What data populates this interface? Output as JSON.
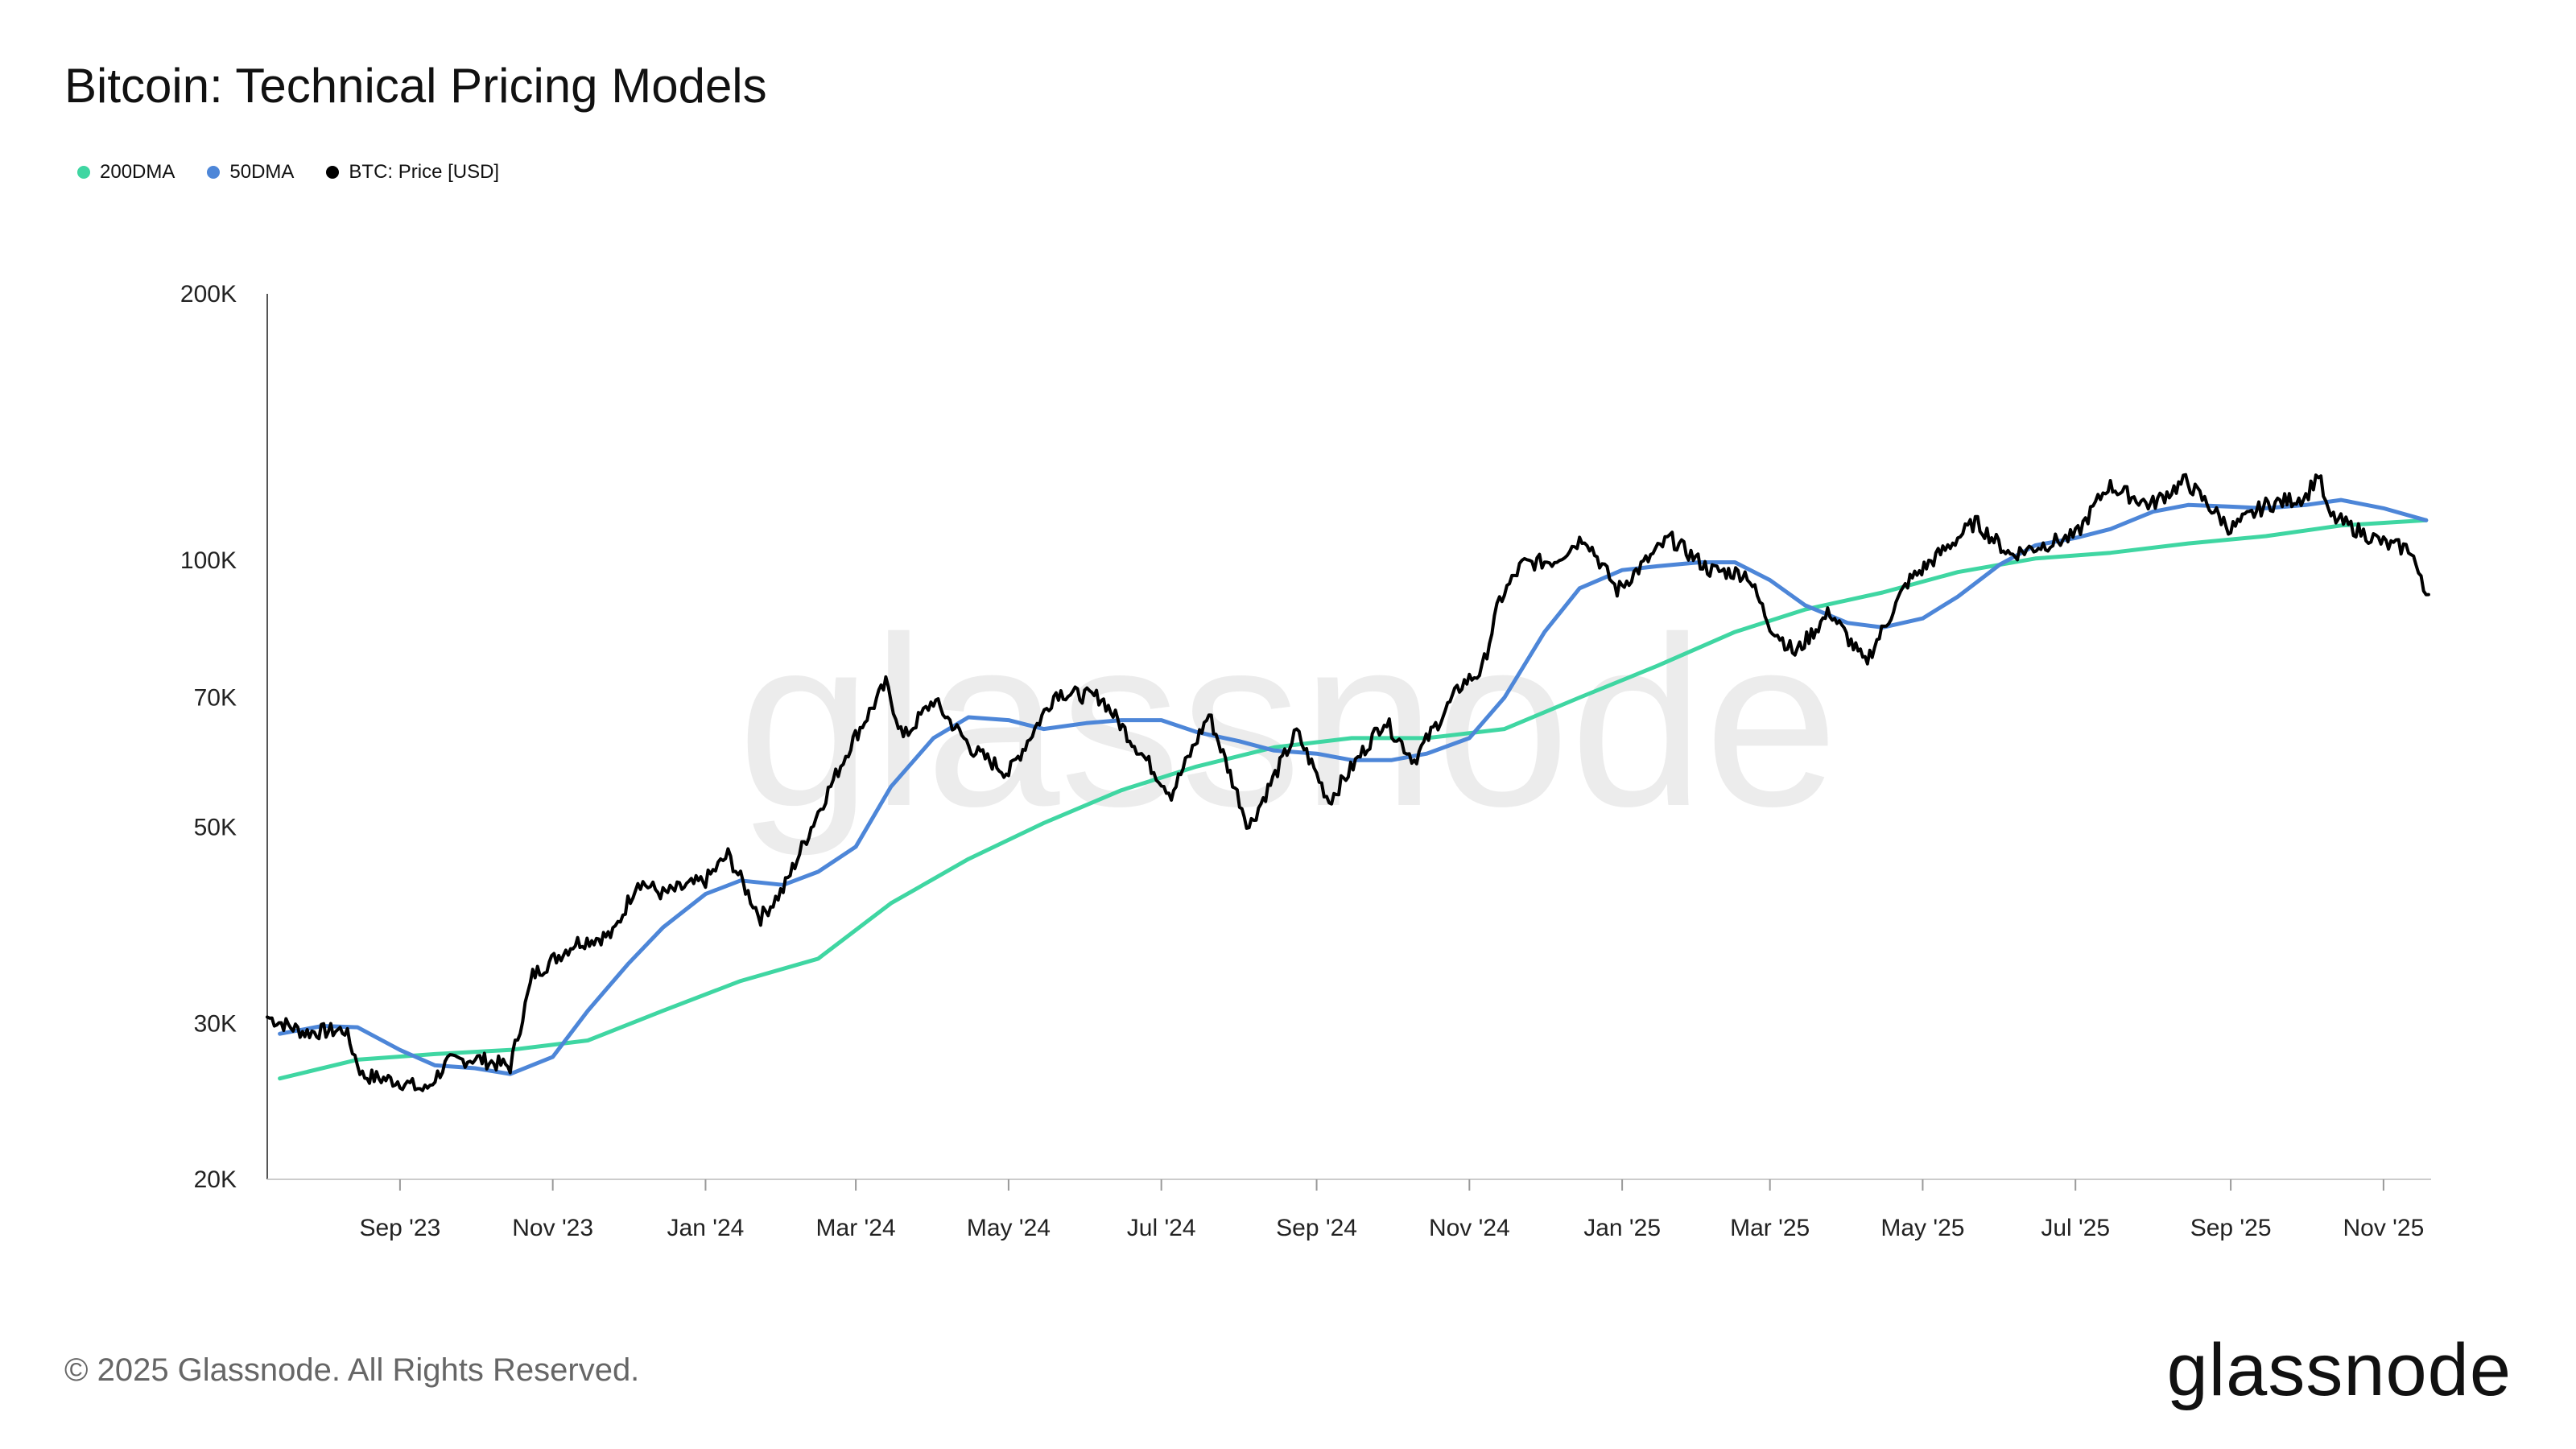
{
  "title": "Bitcoin: Technical Pricing Models",
  "footer": "© 2025 Glassnode. All Rights Reserved.",
  "brand": "glassnode",
  "watermark": "glassnode",
  "chart_data": {
    "type": "line",
    "y_scale": "log",
    "ylim": [
      20000,
      200000
    ],
    "xlim": [
      "2023-07-10",
      "2025-11-20"
    ],
    "x_ticks": [
      {
        "date": "2023-09-01",
        "label": "Sep '23"
      },
      {
        "date": "2023-11-01",
        "label": "Nov '23"
      },
      {
        "date": "2024-01-01",
        "label": "Jan '24"
      },
      {
        "date": "2024-03-01",
        "label": "Mar '24"
      },
      {
        "date": "2024-05-01",
        "label": "May '24"
      },
      {
        "date": "2024-07-01",
        "label": "Jul '24"
      },
      {
        "date": "2024-09-01",
        "label": "Sep '24"
      },
      {
        "date": "2024-11-01",
        "label": "Nov '24"
      },
      {
        "date": "2025-01-01",
        "label": "Jan '25"
      },
      {
        "date": "2025-03-01",
        "label": "Mar '25"
      },
      {
        "date": "2025-05-01",
        "label": "May '25"
      },
      {
        "date": "2025-07-01",
        "label": "Jul '25"
      },
      {
        "date": "2025-09-01",
        "label": "Sep '25"
      },
      {
        "date": "2025-11-01",
        "label": "Nov '25"
      }
    ],
    "y_ticks": [
      {
        "value": 20000,
        "label": "20K"
      },
      {
        "value": 30000,
        "label": "30K"
      },
      {
        "value": 50000,
        "label": "50K"
      },
      {
        "value": 70000,
        "label": "70K"
      },
      {
        "value": 100000,
        "label": "100K"
      },
      {
        "value": 200000,
        "label": "200K"
      }
    ],
    "legend_position": "top-left",
    "grid": false,
    "series": [
      {
        "name": "200DMA",
        "color": "#3fd6a2",
        "points": [
          [
            "2023-07-15",
            26000
          ],
          [
            "2023-08-15",
            27300
          ],
          [
            "2023-09-15",
            27700
          ],
          [
            "2023-10-15",
            28000
          ],
          [
            "2023-11-15",
            28700
          ],
          [
            "2023-12-15",
            31000
          ],
          [
            "2024-01-15",
            33500
          ],
          [
            "2024-02-15",
            35500
          ],
          [
            "2024-03-15",
            41000
          ],
          [
            "2024-04-15",
            46000
          ],
          [
            "2024-05-15",
            50500
          ],
          [
            "2024-06-15",
            55000
          ],
          [
            "2024-07-15",
            58500
          ],
          [
            "2024-08-15",
            61500
          ],
          [
            "2024-09-15",
            63000
          ],
          [
            "2024-10-15",
            63000
          ],
          [
            "2024-11-15",
            64500
          ],
          [
            "2024-12-15",
            70000
          ],
          [
            "2025-01-15",
            76000
          ],
          [
            "2025-02-15",
            83000
          ],
          [
            "2025-03-15",
            88000
          ],
          [
            "2025-04-15",
            92000
          ],
          [
            "2025-05-15",
            97000
          ],
          [
            "2025-06-15",
            100500
          ],
          [
            "2025-07-15",
            102000
          ],
          [
            "2025-08-15",
            104500
          ],
          [
            "2025-09-15",
            106500
          ],
          [
            "2025-10-15",
            109500
          ],
          [
            "2025-11-18",
            111000
          ]
        ]
      },
      {
        "name": "50DMA",
        "color": "#4d86d8",
        "points": [
          [
            "2023-07-15",
            29200
          ],
          [
            "2023-08-01",
            29800
          ],
          [
            "2023-08-15",
            29700
          ],
          [
            "2023-09-01",
            28000
          ],
          [
            "2023-09-15",
            26900
          ],
          [
            "2023-10-01",
            26700
          ],
          [
            "2023-10-15",
            26300
          ],
          [
            "2023-11-01",
            27500
          ],
          [
            "2023-11-15",
            31000
          ],
          [
            "2023-12-01",
            35000
          ],
          [
            "2023-12-15",
            38500
          ],
          [
            "2024-01-01",
            42000
          ],
          [
            "2024-01-15",
            43500
          ],
          [
            "2024-02-01",
            43000
          ],
          [
            "2024-02-15",
            44500
          ],
          [
            "2024-03-01",
            47500
          ],
          [
            "2024-03-15",
            55500
          ],
          [
            "2024-04-01",
            63000
          ],
          [
            "2024-04-15",
            66500
          ],
          [
            "2024-05-01",
            66000
          ],
          [
            "2024-05-15",
            64500
          ],
          [
            "2024-06-01",
            65500
          ],
          [
            "2024-06-15",
            66000
          ],
          [
            "2024-07-01",
            66000
          ],
          [
            "2024-07-15",
            64000
          ],
          [
            "2024-08-01",
            62500
          ],
          [
            "2024-08-15",
            61000
          ],
          [
            "2024-09-01",
            60500
          ],
          [
            "2024-09-15",
            59500
          ],
          [
            "2024-10-01",
            59500
          ],
          [
            "2024-10-15",
            60500
          ],
          [
            "2024-11-01",
            63000
          ],
          [
            "2024-11-15",
            70000
          ],
          [
            "2024-12-01",
            83000
          ],
          [
            "2024-12-15",
            93000
          ],
          [
            "2025-01-01",
            97500
          ],
          [
            "2025-01-15",
            98500
          ],
          [
            "2025-02-01",
            99500
          ],
          [
            "2025-02-15",
            99500
          ],
          [
            "2025-03-01",
            95000
          ],
          [
            "2025-03-15",
            89000
          ],
          [
            "2025-04-01",
            85000
          ],
          [
            "2025-04-15",
            84000
          ],
          [
            "2025-05-01",
            86000
          ],
          [
            "2025-05-15",
            91000
          ],
          [
            "2025-06-01",
            99000
          ],
          [
            "2025-06-15",
            104000
          ],
          [
            "2025-07-01",
            106000
          ],
          [
            "2025-07-15",
            108500
          ],
          [
            "2025-08-01",
            113500
          ],
          [
            "2025-08-15",
            115500
          ],
          [
            "2025-09-01",
            115000
          ],
          [
            "2025-09-15",
            114500
          ],
          [
            "2025-10-01",
            115500
          ],
          [
            "2025-10-15",
            117000
          ],
          [
            "2025-11-01",
            114500
          ],
          [
            "2025-11-18",
            111000
          ]
        ]
      },
      {
        "name": "BTC: Price [USD]",
        "color": "#000000",
        "points": [
          [
            "2023-07-10",
            30500
          ],
          [
            "2023-07-25",
            29300
          ],
          [
            "2023-08-10",
            29500
          ],
          [
            "2023-08-17",
            26200
          ],
          [
            "2023-09-01",
            25800
          ],
          [
            "2023-09-11",
            25200
          ],
          [
            "2023-09-20",
            27100
          ],
          [
            "2023-10-01",
            27400
          ],
          [
            "2023-10-15",
            26800
          ],
          [
            "2023-10-24",
            34000
          ],
          [
            "2023-11-10",
            37000
          ],
          [
            "2023-11-25",
            37800
          ],
          [
            "2023-12-05",
            43500
          ],
          [
            "2023-12-15",
            42000
          ],
          [
            "2024-01-01",
            43500
          ],
          [
            "2024-01-10",
            46500
          ],
          [
            "2024-01-23",
            39500
          ],
          [
            "2024-02-01",
            42500
          ],
          [
            "2024-02-15",
            52000
          ],
          [
            "2024-02-28",
            62000
          ],
          [
            "2024-03-13",
            72500
          ],
          [
            "2024-03-20",
            63000
          ],
          [
            "2024-04-01",
            69500
          ],
          [
            "2024-04-17",
            61000
          ],
          [
            "2024-05-01",
            57500
          ],
          [
            "2024-05-20",
            71000
          ],
          [
            "2024-06-07",
            70000
          ],
          [
            "2024-06-24",
            60000
          ],
          [
            "2024-07-05",
            54500
          ],
          [
            "2024-07-20",
            67000
          ],
          [
            "2024-08-05",
            50000
          ],
          [
            "2024-08-24",
            64000
          ],
          [
            "2024-09-06",
            53500
          ],
          [
            "2024-09-28",
            66000
          ],
          [
            "2024-10-10",
            59500
          ],
          [
            "2024-10-29",
            72500
          ],
          [
            "2024-11-06",
            75000
          ],
          [
            "2024-11-13",
            90000
          ],
          [
            "2024-11-22",
            99000
          ],
          [
            "2024-12-05",
            100000
          ],
          [
            "2024-12-17",
            106500
          ],
          [
            "2024-12-30",
            92500
          ],
          [
            "2025-01-20",
            106000
          ],
          [
            "2025-02-05",
            97500
          ],
          [
            "2025-02-20",
            96500
          ],
          [
            "2025-03-01",
            84500
          ],
          [
            "2025-03-11",
            78500
          ],
          [
            "2025-03-25",
            87500
          ],
          [
            "2025-04-08",
            76500
          ],
          [
            "2025-04-25",
            94500
          ],
          [
            "2025-05-10",
            103000
          ],
          [
            "2025-05-22",
            110500
          ],
          [
            "2025-06-05",
            101500
          ],
          [
            "2025-06-20",
            104500
          ],
          [
            "2025-07-01",
            106500
          ],
          [
            "2025-07-14",
            121500
          ],
          [
            "2025-07-31",
            115500
          ],
          [
            "2025-08-14",
            123000
          ],
          [
            "2025-09-01",
            108500
          ],
          [
            "2025-09-15",
            115500
          ],
          [
            "2025-10-01",
            118000
          ],
          [
            "2025-10-06",
            125500
          ],
          [
            "2025-10-10",
            112500
          ],
          [
            "2025-10-22",
            108000
          ],
          [
            "2025-11-03",
            104000
          ],
          [
            "2025-11-12",
            103000
          ],
          [
            "2025-11-17",
            92500
          ],
          [
            "2025-11-19",
            91500
          ]
        ]
      }
    ]
  }
}
